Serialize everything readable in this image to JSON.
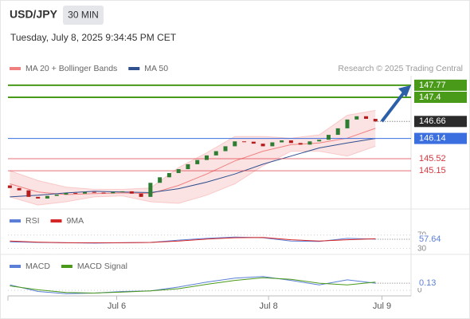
{
  "header": {
    "title": "USD/JPY",
    "interval": "30 MIN",
    "datetime": "Tuesday, July 8, 2025 9:34:45 PM CET",
    "credit": "Research © 2025 Trading Central"
  },
  "chart_data": [
    {
      "type": "candlestick",
      "up_color": "#2e7d32",
      "down_color": "#b71c1c",
      "x": [
        0,
        1,
        2,
        3,
        4,
        5,
        6,
        7,
        8,
        9,
        10,
        11,
        12,
        13,
        14,
        15,
        16,
        17,
        18,
        19,
        20,
        21,
        22,
        23,
        24,
        25,
        26,
        27,
        28,
        29,
        30,
        31,
        32,
        33,
        34,
        35,
        36,
        37,
        38,
        39
      ],
      "open": [
        144.7,
        144.62,
        144.55,
        144.35,
        144.3,
        144.38,
        144.42,
        144.47,
        144.45,
        144.5,
        144.48,
        144.46,
        144.5,
        144.52,
        144.45,
        144.35,
        144.78,
        144.95,
        145.08,
        145.2,
        145.35,
        145.48,
        145.62,
        145.75,
        145.9,
        146.05,
        146.04,
        145.98,
        145.9,
        146.02,
        146.08,
        146.0,
        145.95,
        146.05,
        146.1,
        146.25,
        146.45,
        146.72,
        146.82,
        146.74
      ],
      "close": [
        144.62,
        144.55,
        144.35,
        144.3,
        144.38,
        144.42,
        144.47,
        144.45,
        144.5,
        144.48,
        144.46,
        144.5,
        144.52,
        144.45,
        144.35,
        144.78,
        144.95,
        145.08,
        145.2,
        145.35,
        145.48,
        145.62,
        145.75,
        145.9,
        146.05,
        146.04,
        145.98,
        145.9,
        146.02,
        146.08,
        146.0,
        145.95,
        146.05,
        146.1,
        146.25,
        146.45,
        146.72,
        146.82,
        146.74,
        146.66
      ],
      "series": [
        {
          "name": "MA 20 + Bollinger Bands",
          "color": "#f08080",
          "x": [
            0,
            3,
            6,
            9,
            12,
            15,
            18,
            21,
            24,
            27,
            30,
            33,
            36,
            39
          ],
          "values": [
            144.75,
            144.5,
            144.42,
            144.45,
            144.47,
            144.45,
            144.7,
            145.05,
            145.45,
            145.75,
            145.95,
            146.0,
            146.15,
            146.45
          ],
          "upper": [
            145.15,
            144.85,
            144.65,
            144.58,
            144.58,
            144.62,
            145.25,
            145.7,
            146.2,
            146.2,
            146.15,
            146.25,
            146.85,
            147.0
          ],
          "lower": [
            144.35,
            144.1,
            144.2,
            144.35,
            144.38,
            144.2,
            144.15,
            144.4,
            144.75,
            145.3,
            145.75,
            145.75,
            145.6,
            145.9
          ]
        },
        {
          "name": "MA 50",
          "color": "#2f4f8f",
          "x": [
            0,
            3,
            6,
            9,
            12,
            15,
            18,
            21,
            24,
            27,
            30,
            33,
            36,
            39
          ],
          "values": [
            144.35,
            144.4,
            144.47,
            144.52,
            144.5,
            144.48,
            144.6,
            144.8,
            145.05,
            145.35,
            145.6,
            145.85,
            146.0,
            146.14
          ]
        }
      ],
      "levels": [
        {
          "value": 147.77,
          "color": "#4a9a1a",
          "box": true
        },
        {
          "value": 147.4,
          "color": "#4a9a1a",
          "box": true
        },
        {
          "value": 146.14,
          "color": "#3b6fe0",
          "box": true
        },
        {
          "value": 145.52,
          "color": "#d9363e",
          "box": false
        },
        {
          "value": 145.15,
          "color": "#d9363e",
          "box": false
        }
      ],
      "ylim": [
        143.98,
        148.06
      ],
      "xlim": [
        -0.2,
        42.8
      ],
      "xticks": [
        {
          "value": 11.4,
          "label": "Jul 6"
        },
        {
          "value": 27.6,
          "label": "Jul 8"
        },
        {
          "value": 39.7,
          "label": "Jul 9"
        }
      ]
    },
    {
      "type": "line",
      "series": [
        {
          "name": "RSI",
          "color": "#5b7fd6",
          "x": [
            0,
            3,
            6,
            9,
            12,
            15,
            18,
            21,
            24,
            27,
            30,
            33,
            36,
            39
          ],
          "values": [
            50,
            48,
            47,
            46,
            47,
            48,
            55,
            60,
            64,
            62,
            52,
            51,
            60,
            57.64
          ]
        },
        {
          "name": "9MA",
          "color": "#d62728",
          "x": [
            0,
            3,
            6,
            9,
            12,
            15,
            18,
            21,
            24,
            27,
            30,
            33,
            36,
            39
          ],
          "values": [
            52,
            49,
            47,
            47,
            47,
            48,
            52,
            58,
            62,
            63,
            56,
            52,
            56,
            59
          ]
        }
      ],
      "ylim": [
        15,
        100
      ],
      "yticks": [
        70,
        30
      ]
    },
    {
      "type": "line",
      "series": [
        {
          "name": "MACD",
          "color": "#5b7fd6",
          "x": [
            0,
            3,
            6,
            9,
            12,
            15,
            18,
            21,
            24,
            27,
            30,
            33,
            36,
            39
          ],
          "values": [
            0.1,
            -0.02,
            -0.06,
            -0.05,
            -0.02,
            -0.01,
            0.06,
            0.15,
            0.22,
            0.25,
            0.18,
            0.1,
            0.19,
            0.13
          ]
        },
        {
          "name": "MACD Signal",
          "color": "#4a9a1a",
          "x": [
            0,
            3,
            6,
            9,
            12,
            15,
            18,
            21,
            24,
            27,
            30,
            33,
            36,
            39
          ],
          "values": [
            0.08,
            0.01,
            -0.04,
            -0.05,
            -0.03,
            -0.01,
            0.03,
            0.11,
            0.18,
            0.23,
            0.2,
            0.13,
            0.1,
            0.15
          ]
        }
      ],
      "ylim": [
        -0.1,
        0.55
      ],
      "yticks": [
        0
      ]
    }
  ]
}
